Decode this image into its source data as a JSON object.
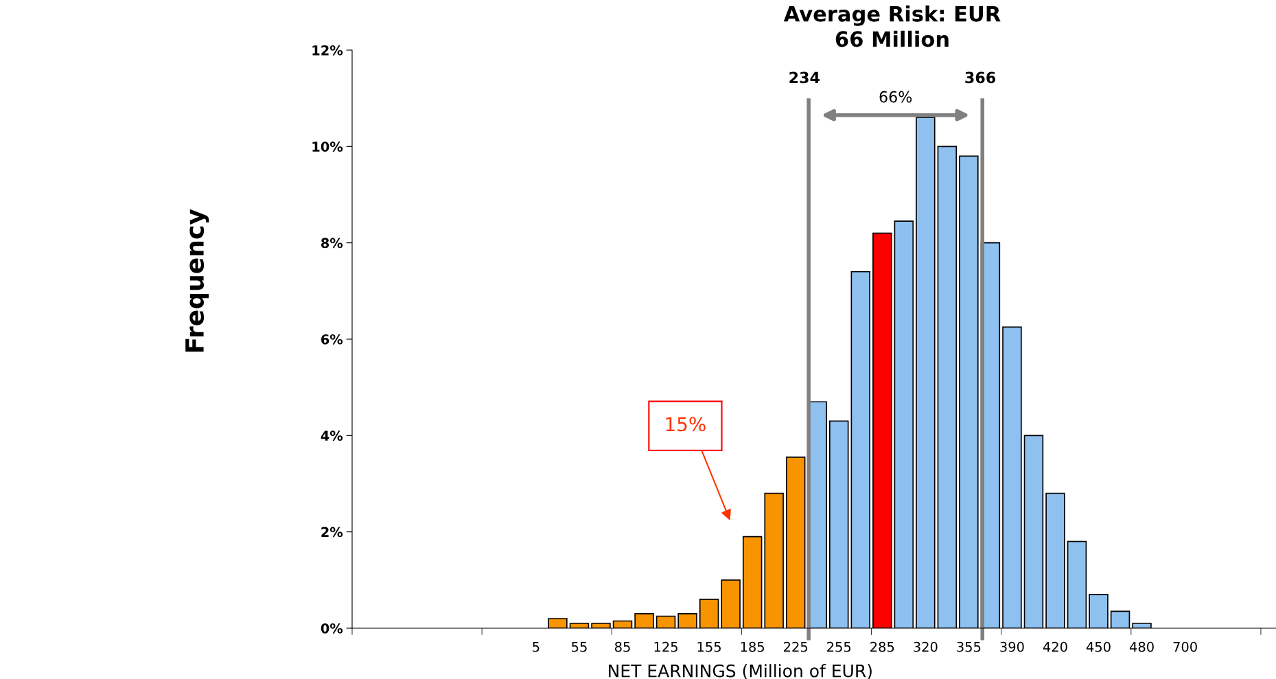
{
  "chart_data": {
    "type": "bar",
    "title": "Average Risk: EUR\n66 Million",
    "xlabel": "NET EARNINGS (Million of EUR)",
    "ylabel": "Frequency",
    "categories": [
      null,
      null,
      null,
      null,
      null,
      null,
      null,
      null,
      "5",
      null,
      "55",
      null,
      "85",
      null,
      "125",
      null,
      "155",
      null,
      "185",
      null,
      "225",
      null,
      "255",
      null,
      "285",
      null,
      "320",
      null,
      "355",
      null,
      "390",
      null,
      "420",
      null,
      "450",
      null,
      "480",
      null,
      "700",
      null,
      null,
      null
    ],
    "values": [
      null,
      null,
      null,
      null,
      null,
      null,
      null,
      null,
      null,
      0.2,
      0.1,
      0.1,
      0.15,
      0.3,
      0.25,
      0.3,
      0.6,
      1.0,
      1.9,
      2.8,
      3.55,
      4.7,
      4.3,
      7.4,
      8.2,
      8.45,
      10.6,
      10.0,
      9.8,
      8.0,
      6.25,
      4.0,
      2.8,
      1.8,
      0.7,
      0.35,
      0.1,
      null,
      null,
      null,
      null,
      null
    ],
    "colors": [
      "#f79400",
      "#f79400",
      "#f79400",
      "#f79400",
      "#f79400",
      "#f79400",
      "#f79400",
      "#f79400",
      "#f79400",
      "#f79400",
      "#f79400",
      "#f79400",
      "#f79400",
      "#f79400",
      "#f79400",
      "#f79400",
      "#f79400",
      "#f79400",
      "#f79400",
      "#f79400",
      "#f79400",
      "#8fc1f0",
      "#8fc1f0",
      "#8fc1f0",
      "#ff0000",
      "#8fc1f0",
      "#8fc1f0",
      "#8fc1f0",
      "#8fc1f0",
      "#8fc1f0",
      "#8fc1f0",
      "#8fc1f0",
      "#8fc1f0",
      "#8fc1f0",
      "#8fc1f0",
      "#8fc1f0",
      "#8fc1f0",
      "#8fc1f0",
      "#8fc1f0",
      "#8fc1f0",
      "#8fc1f0",
      "#8fc1f0"
    ],
    "ylim": [
      0,
      12
    ],
    "yticks": [
      {
        "value": 0,
        "label": "0%"
      },
      {
        "value": 2,
        "label": "2%"
      },
      {
        "value": 4,
        "label": "4%"
      },
      {
        "value": 6,
        "label": "6%"
      },
      {
        "value": 8,
        "label": "8%"
      },
      {
        "value": 10,
        "label": "10%"
      },
      {
        "value": 12,
        "label": "12%"
      }
    ],
    "annotations": [
      "234",
      "366",
      "66%",
      "15%"
    ],
    "grid": false,
    "legend": false
  }
}
